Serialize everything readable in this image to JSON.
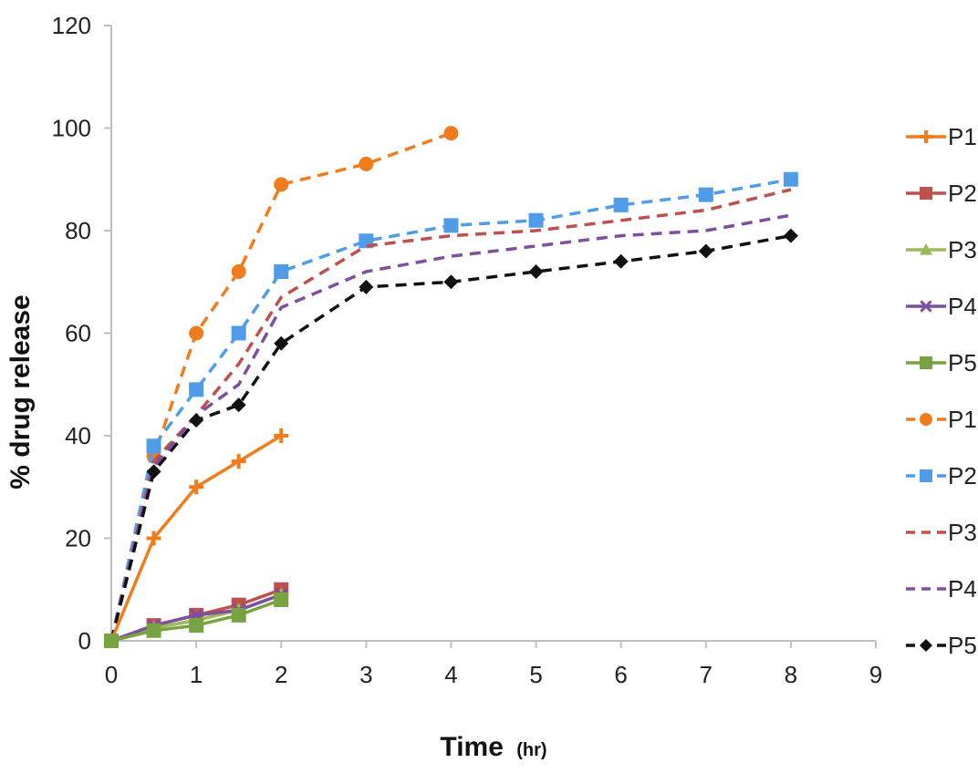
{
  "chart_data": {
    "type": "line",
    "title": "",
    "xlabel": "Time",
    "xlabel_unit": "(hr)",
    "ylabel": "% drug release",
    "xlim": [
      0,
      9
    ],
    "ylim": [
      0,
      120
    ],
    "x_ticks": [
      "0",
      "1",
      "2",
      "3",
      "4",
      "5",
      "6",
      "7",
      "8",
      "9"
    ],
    "y_ticks": [
      "0",
      "20",
      "40",
      "60",
      "80",
      "100",
      "120"
    ],
    "grid": false,
    "legend_position": "right",
    "series": [
      {
        "name": "P1",
        "style": "solid",
        "marker": "cross",
        "color": "#f07d1d",
        "x": [
          0,
          0.5,
          1,
          1.5,
          2
        ],
        "y": [
          0,
          20,
          30,
          35,
          40
        ]
      },
      {
        "name": "P2",
        "style": "solid",
        "marker": "square",
        "color": "#c0504d",
        "x": [
          0,
          0.5,
          1,
          1.5,
          2
        ],
        "y": [
          0,
          3,
          5,
          7,
          10
        ]
      },
      {
        "name": "P3",
        "style": "solid",
        "marker": "triangle",
        "color": "#9bbb59",
        "x": [
          0,
          0.5,
          1,
          1.5,
          2
        ],
        "y": [
          0,
          2.5,
          4,
          6,
          9
        ]
      },
      {
        "name": "P4",
        "style": "solid",
        "marker": "x",
        "color": "#7f4f9f",
        "x": [
          0,
          0.5,
          1,
          1.5,
          2
        ],
        "y": [
          0,
          3,
          5,
          6,
          9
        ]
      },
      {
        "name": "P5",
        "style": "solid",
        "marker": "square",
        "color": "#77a340",
        "x": [
          0,
          0.5,
          1,
          1.5,
          2
        ],
        "y": [
          0,
          2,
          3,
          5,
          8
        ]
      },
      {
        "name": "P1",
        "style": "dashed",
        "marker": "circle",
        "color": "#f07d1d",
        "x": [
          0,
          0.5,
          1,
          1.5,
          2,
          3,
          4
        ],
        "y": [
          0,
          36,
          60,
          72,
          89,
          93,
          99
        ]
      },
      {
        "name": "P2",
        "style": "dashed",
        "marker": "square",
        "color": "#4f9de8",
        "x": [
          0,
          0.5,
          1,
          1.5,
          2,
          3,
          4,
          5,
          6,
          7,
          8
        ],
        "y": [
          0,
          38,
          49,
          60,
          72,
          78,
          81,
          82,
          85,
          87,
          90
        ]
      },
      {
        "name": "P3",
        "style": "dashed",
        "marker": "none",
        "color": "#c0504d",
        "x": [
          0,
          0.5,
          1,
          1.5,
          2,
          3,
          4,
          5,
          6,
          7,
          8
        ],
        "y": [
          0,
          35,
          44,
          54,
          67,
          77,
          79,
          80,
          82,
          84,
          88
        ]
      },
      {
        "name": "P4",
        "style": "dashed",
        "marker": "none",
        "color": "#7f4f9f",
        "x": [
          0,
          0.5,
          1,
          1.5,
          2,
          3,
          4,
          5,
          6,
          7,
          8
        ],
        "y": [
          0,
          34,
          44,
          50,
          65,
          72,
          75,
          77,
          79,
          80,
          83
        ]
      },
      {
        "name": "P5",
        "style": "dashed",
        "marker": "diamond",
        "color": "#111111",
        "x": [
          0,
          0.5,
          1,
          1.5,
          2,
          3,
          4,
          5,
          6,
          7,
          8
        ],
        "y": [
          0,
          33,
          43,
          46,
          58,
          69,
          70,
          72,
          74,
          76,
          79
        ]
      }
    ]
  }
}
